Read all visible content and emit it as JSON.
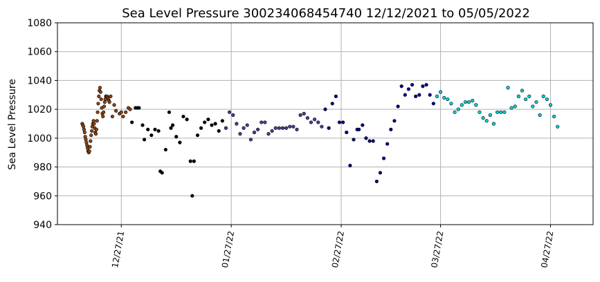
{
  "chart_data": {
    "type": "scatter",
    "title": "Sea Level Pressure 300234068454740  12/12/2021 to 05/05/2022",
    "xlabel": "",
    "ylabel": "Sea Level Pressure",
    "xlim": [
      "2021-12-09",
      "2022-05-09"
    ],
    "ylim": [
      940,
      1080
    ],
    "yticks": [
      940,
      960,
      980,
      1000,
      1020,
      1040,
      1060,
      1080
    ],
    "xticks": [
      {
        "date": "2021-12-27",
        "label": "12/27/21"
      },
      {
        "date": "2022-01-27",
        "label": "01/27/22"
      },
      {
        "date": "2022-02-27",
        "label": "02/27/22"
      },
      {
        "date": "2022-03-27",
        "label": "03/27/22"
      },
      {
        "date": "2022-04-27",
        "label": "04/27/22"
      }
    ],
    "grid": true,
    "marker_colors": [
      "#8b4513",
      "#000000",
      "#483d8b",
      "#00008b",
      "#00ced1"
    ],
    "points": [
      [
        "2021-12-16 00:00",
        1010,
        0
      ],
      [
        "2021-12-16 04:00",
        1009,
        0
      ],
      [
        "2021-12-16 08:00",
        1008,
        0
      ],
      [
        "2021-12-16 12:00",
        1006,
        0
      ],
      [
        "2021-12-16 16:00",
        1004,
        0
      ],
      [
        "2021-12-16 20:00",
        1001,
        0
      ],
      [
        "2021-12-17 00:00",
        999,
        0
      ],
      [
        "2021-12-17 04:00",
        997,
        0
      ],
      [
        "2021-12-17 08:00",
        995,
        0
      ],
      [
        "2021-12-17 12:00",
        993,
        0
      ],
      [
        "2021-12-17 16:00",
        991,
        0
      ],
      [
        "2021-12-17 20:00",
        990,
        0
      ],
      [
        "2021-12-18 00:00",
        991,
        0
      ],
      [
        "2021-12-18 04:00",
        994,
        0
      ],
      [
        "2021-12-18 08:00",
        998,
        0
      ],
      [
        "2021-12-18 12:00",
        1002,
        0
      ],
      [
        "2021-12-18 16:00",
        1005,
        0
      ],
      [
        "2021-12-18 20:00",
        1008,
        0
      ],
      [
        "2021-12-19 00:00",
        1010,
        0
      ],
      [
        "2021-12-19 04:00",
        1012,
        0
      ],
      [
        "2021-12-19 08:00",
        1010,
        0
      ],
      [
        "2021-12-19 12:00",
        1007,
        0
      ],
      [
        "2021-12-19 16:00",
        1004,
        0
      ],
      [
        "2021-12-19 20:00",
        1003,
        0
      ],
      [
        "2021-12-20 00:00",
        1006,
        0
      ],
      [
        "2021-12-20 04:00",
        1012,
        0
      ],
      [
        "2021-12-20 08:00",
        1018,
        0
      ],
      [
        "2021-12-20 12:00",
        1024,
        0
      ],
      [
        "2021-12-20 16:00",
        1029,
        0
      ],
      [
        "2021-12-20 20:00",
        1033,
        0
      ],
      [
        "2021-12-21 00:00",
        1035,
        0
      ],
      [
        "2021-12-21 04:00",
        1032,
        0
      ],
      [
        "2021-12-21 08:00",
        1027,
        0
      ],
      [
        "2021-12-21 12:00",
        1021,
        0
      ],
      [
        "2021-12-21 16:00",
        1017,
        0
      ],
      [
        "2021-12-21 20:00",
        1015,
        0
      ],
      [
        "2021-12-22 00:00",
        1018,
        0
      ],
      [
        "2021-12-22 04:00",
        1022,
        0
      ],
      [
        "2021-12-22 08:00",
        1025,
        0
      ],
      [
        "2021-12-22 12:00",
        1027,
        0
      ],
      [
        "2021-12-22 16:00",
        1029,
        0
      ],
      [
        "2021-12-22 20:00",
        1029,
        0
      ],
      [
        "2021-12-23 00:00",
        1029,
        0
      ],
      [
        "2021-12-23 04:00",
        1028,
        0
      ],
      [
        "2021-12-23 08:00",
        1027,
        0
      ],
      [
        "2021-12-23 12:00",
        1026,
        0
      ],
      [
        "2021-12-23 16:00",
        1025,
        0
      ],
      [
        "2021-12-24 00:00",
        1029,
        0
      ],
      [
        "2021-12-24 12:00",
        1015,
        0
      ],
      [
        "2021-12-25 00:00",
        1023,
        0
      ],
      [
        "2021-12-25 12:00",
        1019,
        0
      ],
      [
        "2021-12-26 12:00",
        1017,
        0
      ],
      [
        "2021-12-27 00:00",
        1018,
        0
      ],
      [
        "2021-12-27 12:00",
        1015,
        0
      ],
      [
        "2021-12-28 06:00",
        1018,
        0
      ],
      [
        "2021-12-29 00:00",
        1021,
        0
      ],
      [
        "2021-12-29 12:00",
        1020,
        0
      ],
      [
        "2021-12-30 00:00",
        1011,
        1
      ],
      [
        "2021-12-31 00:00",
        1021,
        1
      ],
      [
        "2021-12-31 12:00",
        1021,
        1
      ],
      [
        "2022-01-01 00:00",
        1021,
        1
      ],
      [
        "2022-01-02 00:00",
        1009,
        1
      ],
      [
        "2022-01-02 12:00",
        999,
        1
      ],
      [
        "2022-01-03 12:00",
        1006,
        1
      ],
      [
        "2022-01-04 12:00",
        1002,
        1
      ],
      [
        "2022-01-05 12:00",
        1006,
        1
      ],
      [
        "2022-01-06 12:00",
        1005,
        1
      ],
      [
        "2022-01-07 00:00",
        977,
        1
      ],
      [
        "2022-01-07 12:00",
        976,
        1
      ],
      [
        "2022-01-08 12:00",
        992,
        1
      ],
      [
        "2022-01-09 12:00",
        1018,
        1
      ],
      [
        "2022-01-10 00:00",
        1007,
        1
      ],
      [
        "2022-01-10 12:00",
        1009,
        1
      ],
      [
        "2022-01-11 12:00",
        1001,
        1
      ],
      [
        "2022-01-12 12:00",
        997,
        1
      ],
      [
        "2022-01-13 12:00",
        1015,
        1
      ],
      [
        "2022-01-14 12:00",
        1013,
        1
      ],
      [
        "2022-01-15 12:00",
        984,
        1
      ],
      [
        "2022-01-16 00:00",
        960,
        1
      ],
      [
        "2022-01-16 12:00",
        984,
        1
      ],
      [
        "2022-01-17 12:00",
        1002,
        1
      ],
      [
        "2022-01-18 12:00",
        1007,
        1
      ],
      [
        "2022-01-19 12:00",
        1011,
        1
      ],
      [
        "2022-01-20 12:00",
        1013,
        1
      ],
      [
        "2022-01-21 12:00",
        1009,
        1
      ],
      [
        "2022-01-22 12:00",
        1010,
        1
      ],
      [
        "2022-01-23 12:00",
        1005,
        1
      ],
      [
        "2022-01-24 12:00",
        1012,
        1
      ],
      [
        "2022-01-25 12:00",
        1007,
        2
      ],
      [
        "2022-01-26 12:00",
        1018,
        2
      ],
      [
        "2022-01-27 12:00",
        1016,
        2
      ],
      [
        "2022-01-28 12:00",
        1010,
        2
      ],
      [
        "2022-01-29 12:00",
        1003,
        2
      ],
      [
        "2022-01-30 12:00",
        1007,
        2
      ],
      [
        "2022-01-31 12:00",
        1009,
        2
      ],
      [
        "2022-02-01 12:00",
        999,
        2
      ],
      [
        "2022-02-02 12:00",
        1004,
        2
      ],
      [
        "2022-02-03 12:00",
        1006,
        2
      ],
      [
        "2022-02-04 12:00",
        1011,
        2
      ],
      [
        "2022-02-05 12:00",
        1011,
        2
      ],
      [
        "2022-02-06 12:00",
        1003,
        2
      ],
      [
        "2022-02-07 12:00",
        1005,
        2
      ],
      [
        "2022-02-08 12:00",
        1007,
        2
      ],
      [
        "2022-02-09 12:00",
        1007,
        2
      ],
      [
        "2022-02-10 12:00",
        1007,
        2
      ],
      [
        "2022-02-11 12:00",
        1007,
        2
      ],
      [
        "2022-02-12 12:00",
        1008,
        2
      ],
      [
        "2022-02-13 12:00",
        1008,
        2
      ],
      [
        "2022-02-14 12:00",
        1006,
        2
      ],
      [
        "2022-02-15 12:00",
        1016,
        2
      ],
      [
        "2022-02-16 12:00",
        1017,
        2
      ],
      [
        "2022-02-17 12:00",
        1014,
        2
      ],
      [
        "2022-02-18 12:00",
        1011,
        2
      ],
      [
        "2022-02-19 12:00",
        1013,
        2
      ],
      [
        "2022-02-20 12:00",
        1011,
        2
      ],
      [
        "2022-02-21 12:00",
        1008,
        2
      ],
      [
        "2022-02-22 12:00",
        1020,
        3
      ],
      [
        "2022-02-23 12:00",
        1007,
        3
      ],
      [
        "2022-02-24 12:00",
        1024,
        3
      ],
      [
        "2022-02-25 12:00",
        1029,
        3
      ],
      [
        "2022-02-26 12:00",
        1011,
        3
      ],
      [
        "2022-02-27 12:00",
        1011,
        3
      ],
      [
        "2022-02-28 12:00",
        1004,
        3
      ],
      [
        "2022-03-01 12:00",
        981,
        3
      ],
      [
        "2022-03-02 12:00",
        999,
        3
      ],
      [
        "2022-03-03 12:00",
        1006,
        3
      ],
      [
        "2022-03-04 00:00",
        1006,
        3
      ],
      [
        "2022-03-05 00:00",
        1009,
        3
      ],
      [
        "2022-03-06 00:00",
        1000,
        3
      ],
      [
        "2022-03-07 00:00",
        998,
        3
      ],
      [
        "2022-03-08 00:00",
        998,
        3
      ],
      [
        "2022-03-09 00:00",
        970,
        3
      ],
      [
        "2022-03-10 00:00",
        976,
        3
      ],
      [
        "2022-03-11 00:00",
        986,
        3
      ],
      [
        "2022-03-12 00:00",
        996,
        3
      ],
      [
        "2022-03-13 00:00",
        1006,
        3
      ],
      [
        "2022-03-14 00:00",
        1012,
        3
      ],
      [
        "2022-03-15 00:00",
        1022,
        3
      ],
      [
        "2022-03-16 00:00",
        1036,
        3
      ],
      [
        "2022-03-17 00:00",
        1030,
        3
      ],
      [
        "2022-03-18 00:00",
        1034,
        3
      ],
      [
        "2022-03-19 00:00",
        1037,
        3
      ],
      [
        "2022-03-20 00:00",
        1029,
        3
      ],
      [
        "2022-03-21 00:00",
        1030,
        3
      ],
      [
        "2022-03-22 00:00",
        1036,
        3
      ],
      [
        "2022-03-23 00:00",
        1037,
        3
      ],
      [
        "2022-03-24 00:00",
        1030,
        3
      ],
      [
        "2022-03-25 00:00",
        1024,
        3
      ],
      [
        "2022-03-26 00:00",
        1029,
        4
      ],
      [
        "2022-03-27 00:00",
        1032,
        4
      ],
      [
        "2022-03-28 00:00",
        1028,
        4
      ],
      [
        "2022-03-29 00:00",
        1027,
        4
      ],
      [
        "2022-03-30 00:00",
        1024,
        4
      ],
      [
        "2022-03-31 00:00",
        1018,
        4
      ],
      [
        "2022-04-01 00:00",
        1020,
        4
      ],
      [
        "2022-04-02 00:00",
        1023,
        4
      ],
      [
        "2022-04-03 00:00",
        1025,
        4
      ],
      [
        "2022-04-04 00:00",
        1025,
        4
      ],
      [
        "2022-04-05 00:00",
        1026,
        4
      ],
      [
        "2022-04-06 00:00",
        1023,
        4
      ],
      [
        "2022-04-07 00:00",
        1018,
        4
      ],
      [
        "2022-04-08 00:00",
        1014,
        4
      ],
      [
        "2022-04-09 00:00",
        1012,
        4
      ],
      [
        "2022-04-10 00:00",
        1016,
        4
      ],
      [
        "2022-04-11 00:00",
        1010,
        4
      ],
      [
        "2022-04-12 00:00",
        1018,
        4
      ],
      [
        "2022-04-13 00:00",
        1018,
        4
      ],
      [
        "2022-04-14 00:00",
        1018,
        4
      ],
      [
        "2022-04-15 00:00",
        1035,
        4
      ],
      [
        "2022-04-16 00:00",
        1021,
        4
      ],
      [
        "2022-04-17 00:00",
        1022,
        4
      ],
      [
        "2022-04-18 00:00",
        1029,
        4
      ],
      [
        "2022-04-19 00:00",
        1033,
        4
      ],
      [
        "2022-04-20 00:00",
        1027,
        4
      ],
      [
        "2022-04-21 00:00",
        1029,
        4
      ],
      [
        "2022-04-22 00:00",
        1022,
        4
      ],
      [
        "2022-04-23 00:00",
        1025,
        4
      ],
      [
        "2022-04-24 00:00",
        1016,
        4
      ],
      [
        "2022-04-25 00:00",
        1029,
        4
      ],
      [
        "2022-04-26 00:00",
        1027,
        4
      ],
      [
        "2022-04-27 00:00",
        1023,
        4
      ],
      [
        "2022-04-28 00:00",
        1015,
        4
      ],
      [
        "2022-04-29 00:00",
        1008,
        4
      ]
    ]
  }
}
